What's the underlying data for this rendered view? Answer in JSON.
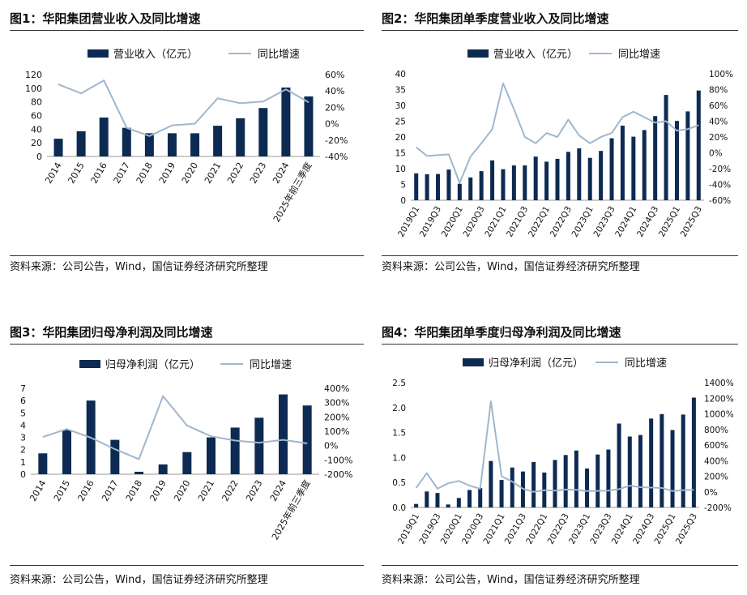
{
  "sources": {
    "text1": "资料来源：公司公告，Wind，国信证券经济研究所整理",
    "text2": "资料来源：公司公告，Wind，国信证券经济研究所整理",
    "text3": "资料来源：公司公告，Wind，国信证券经济研究所整理",
    "text4": "资料来源：公司公告，Wind，国信证券经济研究所整理"
  },
  "colors": {
    "bar": "#0d2b52",
    "line": "#9fb7cf",
    "axis": "#999999"
  },
  "chart_data": [
    {
      "title": "图1：华阳集团营业收入及同比增速",
      "type": "bar+line",
      "categories": [
        "2014",
        "2015",
        "2016",
        "2017",
        "2018",
        "2019",
        "2020",
        "2021",
        "2022",
        "2023",
        "2024",
        "2025年前三季度"
      ],
      "series": [
        {
          "name": "营业收入（亿元）",
          "axis": "left",
          "type": "bar",
          "values": [
            26,
            37,
            57,
            42,
            34,
            34,
            34,
            45,
            56,
            71,
            101,
            88
          ]
        },
        {
          "name": "同比增速",
          "axis": "right",
          "type": "line",
          "values": [
            48,
            37,
            53,
            -5,
            -15,
            -2,
            0,
            31,
            25,
            27,
            42,
            26
          ]
        }
      ],
      "y_left": {
        "ticks": [
          0,
          20,
          40,
          60,
          80,
          100,
          120
        ],
        "labels": [
          "0",
          "20",
          "40",
          "60",
          "80",
          "100",
          "120"
        ]
      },
      "y_right": {
        "ticks": [
          -40,
          -20,
          0,
          20,
          40,
          60
        ],
        "labels": [
          "-40%",
          "-20%",
          "0%",
          "20%",
          "40%",
          "60%"
        ]
      },
      "legend": "top-center"
    },
    {
      "title": "图2：华阳集团单季度营业收入及同比增速",
      "type": "bar+line",
      "categories": [
        "2019Q1",
        "2019Q2",
        "2019Q3",
        "2019Q4",
        "2020Q1",
        "2020Q2",
        "2020Q3",
        "2020Q4",
        "2021Q1",
        "2021Q2",
        "2021Q3",
        "2021Q4",
        "2022Q1",
        "2022Q2",
        "2022Q3",
        "2022Q4",
        "2023Q1",
        "2023Q2",
        "2023Q3",
        "2023Q4",
        "2024Q1",
        "2024Q2",
        "2024Q3",
        "2024Q4",
        "2025Q1",
        "2025Q2",
        "2025Q3"
      ],
      "category_labels": [
        "2019Q1",
        "",
        "2019Q3",
        "",
        "2020Q1",
        "",
        "2020Q3",
        "",
        "2021Q1",
        "",
        "2021Q3",
        "",
        "2022Q1",
        "",
        "2022Q3",
        "",
        "2023Q1",
        "",
        "2023Q3",
        "",
        "2024Q1",
        "",
        "2024Q3",
        "",
        "2025Q1",
        "",
        "2025Q3"
      ],
      "series": [
        {
          "name": "营业收入（亿元）",
          "axis": "left",
          "type": "bar",
          "values": [
            8.5,
            8.2,
            8.3,
            9.7,
            5.2,
            7.2,
            9.2,
            12.6,
            9.8,
            11.0,
            11.0,
            13.8,
            12.2,
            13.1,
            15.3,
            16.4,
            13.4,
            15.6,
            19.6,
            23.6,
            20.1,
            22.2,
            26.6,
            33.3,
            25.1,
            28.1,
            34.7
          ]
        },
        {
          "name": "同比增速",
          "axis": "right",
          "type": "line",
          "values": [
            7,
            -4,
            -3,
            -2,
            -38,
            -5,
            12,
            30,
            88,
            55,
            20,
            12,
            25,
            20,
            42,
            22,
            12,
            20,
            25,
            45,
            52,
            45,
            38,
            40,
            28,
            30,
            35
          ]
        }
      ],
      "y_left": {
        "ticks": [
          0,
          5,
          10,
          15,
          20,
          25,
          30,
          35,
          40
        ],
        "labels": [
          "0",
          "5",
          "10",
          "15",
          "20",
          "25",
          "30",
          "35",
          "40"
        ]
      },
      "y_right": {
        "ticks": [
          -60,
          -40,
          -20,
          0,
          20,
          40,
          60,
          80,
          100
        ],
        "labels": [
          "-60%",
          "-40%",
          "-20%",
          "0%",
          "20%",
          "40%",
          "60%",
          "80%",
          "100%"
        ]
      },
      "legend": "top-center"
    },
    {
      "title": "图3：华阳集团归母净利润及同比增速",
      "type": "bar+line",
      "categories": [
        "2014",
        "2015",
        "2016",
        "2017",
        "2018",
        "2019",
        "2020",
        "2021",
        "2022",
        "2023",
        "2024",
        "2025年前三季度"
      ],
      "series": [
        {
          "name": "归母净利润（亿元）",
          "axis": "left",
          "type": "bar",
          "values": [
            1.7,
            3.6,
            6.0,
            2.8,
            0.2,
            0.8,
            1.8,
            3.0,
            3.8,
            4.6,
            6.5,
            5.6
          ]
        },
        {
          "name": "同比增速",
          "axis": "right",
          "type": "line",
          "values": [
            60,
            115,
            55,
            -25,
            -95,
            345,
            140,
            65,
            35,
            20,
            40,
            15
          ]
        }
      ],
      "y_left": {
        "ticks": [
          0,
          1,
          2,
          3,
          4,
          5,
          6,
          7
        ],
        "labels": [
          "0",
          "1",
          "2",
          "3",
          "4",
          "5",
          "6",
          "7"
        ]
      },
      "y_right": {
        "ticks": [
          -200,
          -100,
          0,
          100,
          200,
          300,
          400
        ],
        "labels": [
          "-200%",
          "-100%",
          "0%",
          "100%",
          "200%",
          "300%",
          "400%"
        ]
      },
      "legend": "top-center"
    },
    {
      "title": "图4：华阳集团单季度归母净利润及同比增速",
      "type": "bar+line",
      "categories": [
        "2019Q1",
        "2019Q2",
        "2019Q3",
        "2019Q4",
        "2020Q1",
        "2020Q2",
        "2020Q3",
        "2020Q4",
        "2021Q1",
        "2021Q2",
        "2021Q3",
        "2021Q4",
        "2022Q1",
        "2022Q2",
        "2022Q3",
        "2022Q4",
        "2023Q1",
        "2023Q2",
        "2023Q3",
        "2023Q4",
        "2024Q1",
        "2024Q2",
        "2024Q3",
        "2024Q4",
        "2025Q1",
        "2025Q2",
        "2025Q3"
      ],
      "category_labels": [
        "2019Q1",
        "",
        "2019Q3",
        "",
        "2020Q1",
        "",
        "2020Q3",
        "",
        "2021Q1",
        "",
        "2021Q3",
        "",
        "2022Q1",
        "",
        "2022Q3",
        "",
        "2023Q1",
        "",
        "2023Q3",
        "",
        "2024Q1",
        "",
        "2024Q3",
        "",
        "2025Q1",
        "",
        "2025Q3"
      ],
      "series": [
        {
          "name": "归母净利润（亿元）",
          "axis": "left",
          "type": "bar",
          "values": [
            0.07,
            0.32,
            0.29,
            0.06,
            0.19,
            0.35,
            0.39,
            0.93,
            0.55,
            0.8,
            0.72,
            0.91,
            0.7,
            0.95,
            1.05,
            1.14,
            0.78,
            1.06,
            1.16,
            1.68,
            1.42,
            1.45,
            1.78,
            1.87,
            1.55,
            1.86,
            2.2
          ]
        },
        {
          "name": "同比增速",
          "axis": "right",
          "type": "line",
          "values": [
            50,
            240,
            40,
            110,
            140,
            80,
            40,
            1160,
            200,
            130,
            40,
            0,
            20,
            15,
            30,
            25,
            10,
            12,
            15,
            35,
            80,
            60,
            55,
            50,
            10,
            20,
            25
          ]
        }
      ],
      "y_left": {
        "ticks": [
          0,
          0.5,
          1.0,
          1.5,
          2.0,
          2.5
        ],
        "labels": [
          "0.0",
          "0.5",
          "1.0",
          "1.5",
          "2.0",
          "2.5"
        ]
      },
      "y_right": {
        "ticks": [
          -200,
          0,
          200,
          400,
          600,
          800,
          1000,
          1200,
          1400
        ],
        "labels": [
          "-200%",
          "0%",
          "200%",
          "400%",
          "600%",
          "800%",
          "1000%",
          "1200%",
          "1400%"
        ]
      },
      "legend": "top-center"
    }
  ]
}
